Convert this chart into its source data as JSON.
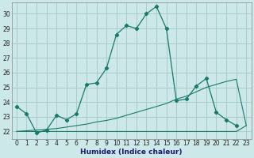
{
  "xlabel": "Humidex (Indice chaleur)",
  "bg_color": "#cce8e8",
  "grid_color": "#aacccc",
  "line_color": "#1a7a6a",
  "xlim": [
    -0.5,
    23.5
  ],
  "ylim": [
    21.5,
    30.75
  ],
  "xticks": [
    0,
    1,
    2,
    3,
    4,
    5,
    6,
    7,
    8,
    9,
    10,
    11,
    12,
    13,
    14,
    15,
    16,
    17,
    18,
    19,
    20,
    21,
    22,
    23
  ],
  "yticks": [
    22,
    23,
    24,
    25,
    26,
    27,
    28,
    29,
    30
  ],
  "curve1_x": [
    0,
    1,
    2,
    3,
    4,
    5,
    6,
    7,
    8,
    9,
    10,
    11,
    12,
    13,
    14,
    15,
    16,
    17,
    18,
    19,
    20,
    21,
    22
  ],
  "curve1_y": [
    23.7,
    23.2,
    21.9,
    22.1,
    23.1,
    22.8,
    23.2,
    25.2,
    25.3,
    26.3,
    28.6,
    29.2,
    29.0,
    30.0,
    30.5,
    29.0,
    24.1,
    24.2,
    25.1,
    25.6,
    23.3,
    22.8,
    22.4
  ],
  "curve2_x": [
    0,
    1,
    2,
    3,
    4,
    5,
    6,
    7,
    8,
    9,
    10,
    11,
    12,
    13,
    14,
    15,
    16,
    17,
    18,
    19,
    20,
    21,
    22,
    23
  ],
  "curve2_y": [
    22.0,
    22.05,
    22.1,
    22.15,
    22.2,
    22.3,
    22.4,
    22.5,
    22.65,
    22.75,
    22.9,
    23.1,
    23.3,
    23.5,
    23.7,
    23.9,
    24.2,
    24.4,
    24.7,
    25.0,
    25.2,
    25.4,
    25.55,
    22.4
  ],
  "curve3_x": [
    0,
    1,
    2,
    3,
    4,
    5,
    6,
    7,
    8,
    9,
    10,
    11,
    12,
    13,
    14,
    15,
    16,
    17,
    18,
    19,
    20,
    21,
    22,
    23
  ],
  "curve3_y": [
    22.0,
    22.0,
    22.0,
    22.0,
    22.0,
    22.0,
    22.0,
    22.0,
    22.0,
    22.0,
    22.0,
    22.0,
    22.0,
    22.0,
    22.0,
    22.0,
    22.0,
    22.0,
    22.0,
    22.0,
    22.0,
    22.0,
    22.0,
    22.4
  ],
  "tick_fontsize": 5.5,
  "xlabel_fontsize": 6.5
}
